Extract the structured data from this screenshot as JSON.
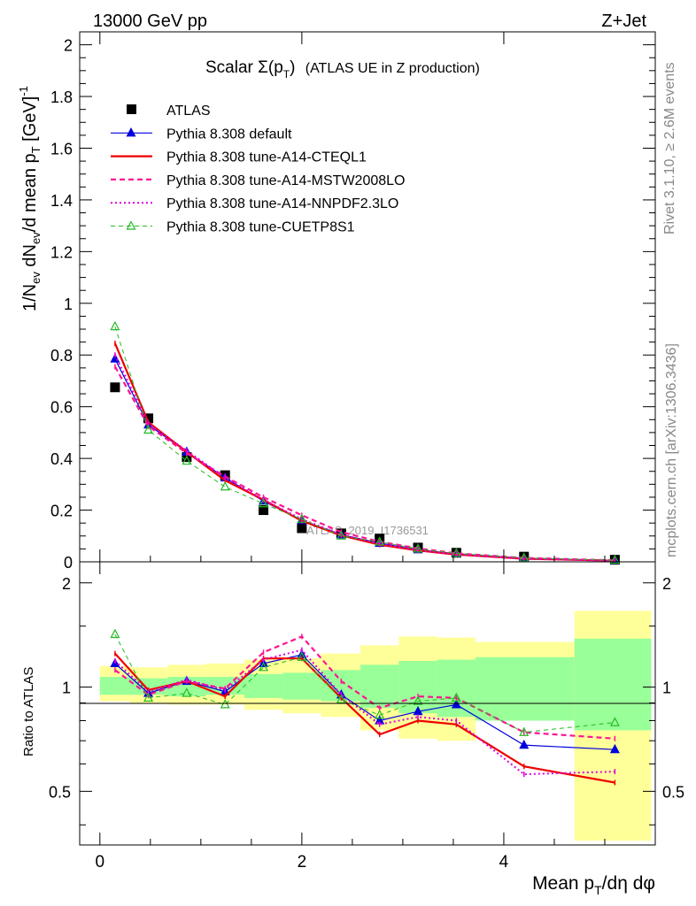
{
  "header": {
    "energy": "13000 GeV pp",
    "process": "Z+Jet",
    "rivet": "Rivet 3.1.10, ≥ 2.6M events",
    "mcplots": "mcplots.cern.ch [arXiv:1306.3436]"
  },
  "chart_data": [
    {
      "type": "line",
      "panel": "main",
      "title_main": "Scalar Σ(p",
      "title_sub": "T",
      "title_close": ")",
      "title_rest": "(ATLAS UE in Z production)",
      "ylabel": "1/N_ev dN_ev/d mean p_T [GeV]^-1",
      "watermark": "ATLAS_2019_I1736531",
      "xlim": [
        -0.2,
        5.5
      ],
      "ylim": [
        0,
        2.05
      ],
      "x_ticks": [
        "0",
        "2",
        "4"
      ],
      "y_ticks": [
        "0",
        "0.2",
        "0.4",
        "0.6",
        "0.8",
        "1",
        "1.2",
        "1.4",
        "1.6",
        "1.8",
        "2"
      ],
      "x": [
        0.15,
        0.48,
        0.86,
        1.24,
        1.62,
        2.0,
        2.39,
        2.77,
        3.15,
        3.53,
        4.2,
        5.1
      ],
      "series": [
        {
          "name": "ATLAS",
          "color": "#000000",
          "style": "data",
          "values": [
            0.675,
            0.555,
            0.405,
            0.335,
            0.2,
            0.13,
            0.11,
            0.09,
            0.055,
            0.035,
            0.02,
            0.008
          ]
        },
        {
          "name": "Pythia 8.308 default",
          "color": "#0000dd",
          "style": "solid-tri",
          "values": [
            0.785,
            0.53,
            0.425,
            0.325,
            0.235,
            0.16,
            0.105,
            0.072,
            0.047,
            0.031,
            0.014,
            0.0053
          ]
        },
        {
          "name": "Pythia 8.308 tune-A14-CTEQL1",
          "color": "#ee0000",
          "style": "solid-thick",
          "values": [
            0.845,
            0.54,
            0.425,
            0.315,
            0.24,
            0.158,
            0.102,
            0.066,
            0.044,
            0.028,
            0.012,
            0.0043
          ]
        },
        {
          "name": "Pythia 8.308 tune-A14-MSTW2008LO",
          "color": "#ff1493",
          "style": "dash",
          "values": [
            0.755,
            0.525,
            0.42,
            0.33,
            0.25,
            0.18,
            0.115,
            0.078,
            0.052,
            0.033,
            0.015,
            0.0057
          ]
        },
        {
          "name": "Pythia 8.308 tune-A14-NNPDF2.3LO",
          "color": "#dd00dd",
          "style": "dot",
          "values": [
            0.8,
            0.535,
            0.43,
            0.325,
            0.24,
            0.165,
            0.105,
            0.07,
            0.045,
            0.028,
            0.0115,
            0.0045
          ]
        },
        {
          "name": "Pythia 8.308 tune-CUETP8S1",
          "color": "#22bb22",
          "style": "dash-tri",
          "values": [
            0.91,
            0.51,
            0.39,
            0.29,
            0.225,
            0.165,
            0.1,
            0.077,
            0.05,
            0.033,
            0.0148,
            0.0063
          ]
        }
      ]
    },
    {
      "type": "line",
      "panel": "ratio",
      "ylabel": "Ratio to ATLAS",
      "xlabel": "Mean p_T/dη dφ",
      "xlim": [
        -0.2,
        5.5
      ],
      "ylim": [
        0.35,
        2.3
      ],
      "x_ticks": [
        "0",
        "2",
        "4"
      ],
      "y_ticks": [
        "0.5",
        "1",
        "2"
      ],
      "x": [
        0.15,
        0.48,
        0.86,
        1.24,
        1.62,
        2.0,
        2.39,
        2.77,
        3.15,
        3.53,
        4.2,
        5.1
      ],
      "bands": {
        "edges": [
          0.0,
          0.3,
          0.67,
          1.05,
          1.43,
          1.81,
          2.19,
          2.58,
          2.96,
          3.34,
          3.72,
          4.7,
          5.46
        ],
        "green": [
          [
            0.95,
            1.07
          ],
          [
            0.95,
            1.06
          ],
          [
            0.94,
            1.07
          ],
          [
            0.95,
            1.07
          ],
          [
            0.93,
            1.09
          ],
          [
            0.92,
            1.1
          ],
          [
            0.91,
            1.12
          ],
          [
            0.87,
            1.16
          ],
          [
            0.84,
            1.19
          ],
          [
            0.82,
            1.2
          ],
          [
            0.8,
            1.22
          ],
          [
            0.75,
            1.38
          ]
        ],
        "yellow": [
          [
            0.91,
            1.15
          ],
          [
            0.9,
            1.14
          ],
          [
            0.89,
            1.16
          ],
          [
            0.89,
            1.17
          ],
          [
            0.86,
            1.2
          ],
          [
            0.84,
            1.21
          ],
          [
            0.82,
            1.25
          ],
          [
            0.75,
            1.32
          ],
          [
            0.71,
            1.4
          ],
          [
            0.7,
            1.39
          ],
          [
            0.89,
            1.35
          ],
          [
            0.36,
            1.66
          ]
        ]
      },
      "series": [
        {
          "name": "Pythia 8.308 default",
          "color": "#0000dd",
          "style": "solid-tri",
          "values": [
            1.17,
            0.96,
            1.04,
            0.97,
            1.17,
            1.24,
            0.95,
            0.8,
            0.85,
            0.89,
            0.68,
            0.66
          ]
        },
        {
          "name": "Pythia 8.308 tune-A14-CTEQL1",
          "color": "#ee0000",
          "style": "solid-thick",
          "values": [
            1.25,
            0.98,
            1.04,
            0.94,
            1.21,
            1.21,
            0.93,
            0.73,
            0.8,
            0.78,
            0.59,
            0.53
          ]
        },
        {
          "name": "Pythia 8.308 tune-A14-MSTW2008LO",
          "color": "#ff1493",
          "style": "dash",
          "values": [
            1.12,
            0.95,
            1.04,
            0.99,
            1.26,
            1.4,
            1.04,
            0.87,
            0.94,
            0.93,
            0.74,
            0.71
          ]
        },
        {
          "name": "Pythia 8.308 tune-A14-NNPDF2.3LO",
          "color": "#dd00dd",
          "style": "dot",
          "values": [
            1.19,
            0.97,
            1.05,
            0.98,
            1.2,
            1.28,
            0.95,
            0.78,
            0.82,
            0.8,
            0.56,
            0.57
          ]
        },
        {
          "name": "Pythia 8.308 tune-CUETP8S1",
          "color": "#22bb22",
          "style": "dash-tri",
          "values": [
            1.42,
            0.93,
            0.96,
            0.89,
            1.14,
            1.22,
            0.92,
            0.83,
            0.91,
            0.93,
            0.74,
            0.79
          ]
        }
      ]
    }
  ]
}
